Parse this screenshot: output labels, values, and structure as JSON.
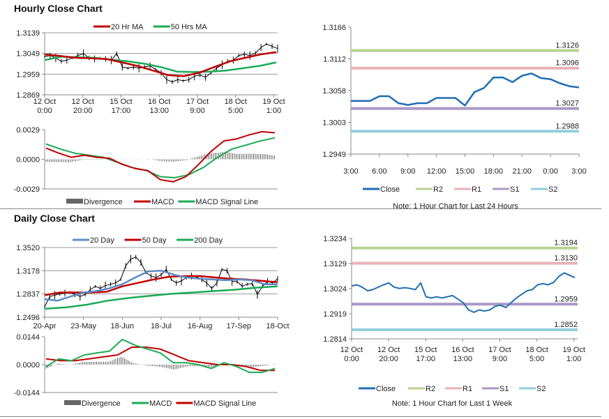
{
  "colors": {
    "close": "#1f6db3",
    "r2": "#b9d38f",
    "r1": "#e6b3b3",
    "s1": "#aa99c6",
    "s2": "#93cddd",
    "red": "#c00000",
    "green": "#1aaa55",
    "blue": "#5b8cc4",
    "bars": "#666666",
    "candle": "#000000"
  },
  "hourly_title": "Hourly Close Chart",
  "daily_title": "Daily Close Chart",
  "chart_data": [
    {
      "id": "hourly-price",
      "type": "line",
      "legend": [
        "20 Hr MA",
        "50 Hrs MA"
      ],
      "ylim": [
        1.2869,
        1.3139
      ],
      "yticks": [
        "1.3139",
        "1.3049",
        "1.2959",
        "1.2869"
      ],
      "xticks": [
        [
          "12 Oct",
          "0:00"
        ],
        [
          "12 Oct",
          "20:00"
        ],
        [
          "15 Oct",
          "17:00"
        ],
        [
          "16 Oct",
          "13:00"
        ],
        [
          "17 Oct",
          "9:00"
        ],
        [
          "18 Oct",
          "5:00"
        ],
        [
          "19 Oct",
          "1:00"
        ]
      ],
      "series": [
        {
          "name": "Close",
          "values": [
            1.3035,
            1.304,
            1.303,
            1.3015,
            1.302,
            1.303,
            1.304,
            1.3048,
            1.303,
            1.3025,
            1.3028,
            1.3025,
            1.302,
            1.3048,
            1.299,
            1.2985,
            1.299,
            1.2985,
            1.299,
            1.2995,
            1.298,
            1.2965,
            1.2935,
            1.2925,
            1.2935,
            1.293,
            1.2935,
            1.295,
            1.2955,
            1.2945,
            1.2965,
            1.2985,
            1.3,
            1.3015,
            1.302,
            1.304,
            1.3045,
            1.304,
            1.305,
            1.3075,
            1.309,
            1.308,
            1.307
          ]
        },
        {
          "name": "20 Hr MA",
          "values": [
            1.3045,
            1.3038,
            1.303,
            1.3028,
            1.3025,
            1.301,
            1.2995,
            1.2975,
            1.2955,
            1.295,
            1.2965,
            1.299,
            1.3015,
            1.303,
            1.3045,
            1.3055
          ]
        },
        {
          "name": "50 Hrs MA",
          "values": [
            1.302,
            1.3035,
            1.3032,
            1.303,
            1.3022,
            1.3015,
            1.3005,
            1.299,
            1.297,
            1.2968,
            1.297,
            1.2975,
            1.2985,
            1.2995,
            1.301
          ]
        }
      ]
    },
    {
      "id": "hourly-macd",
      "type": "line",
      "legend": [
        "Divergence",
        "MACD",
        "MACD Signal Line"
      ],
      "ylim": [
        -0.0029,
        0.0029
      ],
      "yticks": [
        "0.0029",
        "0.0000",
        "-0.0029"
      ],
      "series": [
        {
          "name": "MACD",
          "values": [
            0.0011,
            0.0006,
            0.0002,
            0.0004,
            0.0002,
            0.0001,
            -0.0005,
            -0.0009,
            -0.0011,
            -0.002,
            -0.0022,
            -0.0017,
            -0.0005,
            0.0008,
            0.0018,
            0.002,
            0.0024,
            0.0027,
            0.0026
          ]
        },
        {
          "name": "MACD Signal Line",
          "values": [
            0.0015,
            0.001,
            0.0006,
            0.0004,
            0.0002,
            -0.0003,
            -0.0008,
            -0.0011,
            -0.0017,
            -0.0018,
            -0.0015,
            -0.0008,
            0.0002,
            0.001,
            0.0014,
            0.0018,
            0.0021
          ]
        }
      ]
    },
    {
      "id": "last-24h",
      "type": "line",
      "legend": [
        "Close",
        "R2",
        "R1",
        "S1",
        "S2"
      ],
      "note": "Note: 1 Hour Chart for Last 24 Hours",
      "ylim": [
        1.2949,
        1.3166
      ],
      "yticks": [
        "1.3166",
        "1.3112",
        "1.3058",
        "1.3003",
        "1.2949"
      ],
      "xticks": [
        "3:00",
        "6:00",
        "9:00",
        "12:00",
        "15:00",
        "18:00",
        "21:00",
        "0:00",
        "3:00"
      ],
      "levels": {
        "R2": "1.3126",
        "R1": "1.3096",
        "S1": "1.3027",
        "S2": "1.2988"
      },
      "series": [
        {
          "name": "Close",
          "values": [
            1.304,
            1.304,
            1.304,
            1.3048,
            1.3048,
            1.3036,
            1.3033,
            1.3036,
            1.3036,
            1.3045,
            1.3045,
            1.3045,
            1.3032,
            1.3055,
            1.3062,
            1.308,
            1.308,
            1.3072,
            1.3083,
            1.3087,
            1.3079,
            1.3077,
            1.307,
            1.3065,
            1.3063
          ]
        }
      ]
    },
    {
      "id": "daily-price",
      "type": "line",
      "legend": [
        "20 Day",
        "50 Day",
        "200 Day"
      ],
      "ylim": [
        1.2496,
        1.352
      ],
      "yticks": [
        "1.3520",
        "1.3178",
        "1.2837",
        "1.2496"
      ],
      "xticks": [
        "20-Apr",
        "23-May",
        "18-Jun",
        "18-Jul",
        "16-Aug",
        "17-Sep",
        "18-Oct"
      ],
      "series": [
        {
          "name": "Close",
          "values": [
            1.265,
            1.28,
            1.282,
            1.284,
            1.285,
            1.286,
            1.283,
            1.28,
            1.283,
            1.29,
            1.295,
            1.292,
            1.296,
            1.298,
            1.3,
            1.305,
            1.325,
            1.335,
            1.338,
            1.33,
            1.315,
            1.31,
            1.308,
            1.312,
            1.32,
            1.305,
            1.3,
            1.303,
            1.308,
            1.31,
            1.309,
            1.305,
            1.3,
            1.292,
            1.3,
            1.32,
            1.318,
            1.302,
            1.302,
            1.295,
            1.298,
            1.299,
            1.283,
            1.295,
            1.302,
            1.3,
            1.306
          ]
        },
        {
          "name": "20 Day",
          "values": [
            1.276,
            1.274,
            1.28,
            1.286,
            1.288,
            1.292,
            1.298,
            1.308,
            1.317,
            1.318,
            1.312,
            1.308,
            1.306,
            1.305,
            1.304,
            1.305,
            1.304,
            1.298,
            1.298
          ]
        },
        {
          "name": "50 Day",
          "values": [
            1.282,
            1.286,
            1.286,
            1.286,
            1.287,
            1.295,
            1.3,
            1.305,
            1.309,
            1.31,
            1.31,
            1.308,
            1.306,
            1.305,
            1.303,
            1.301
          ]
        },
        {
          "name": "200 Day",
          "values": [
            1.262,
            1.264,
            1.268,
            1.274,
            1.278,
            1.281,
            1.284,
            1.286,
            1.288,
            1.29,
            1.293,
            1.295
          ]
        }
      ]
    },
    {
      "id": "daily-macd",
      "type": "line",
      "legend": [
        "Divergence",
        "MACD",
        "MACD Signal Line"
      ],
      "ylim": [
        -0.0144,
        0.0144
      ],
      "yticks": [
        "0.0144",
        "0.0000",
        "-0.0144"
      ],
      "series": [
        {
          "name": "MACD",
          "values": [
            -0.001,
            0.003,
            0.002,
            0.005,
            0.006,
            0.007,
            0.013,
            0.01,
            0.008,
            0.006,
            0.001,
            0.001,
            0.0,
            -0.002,
            0.001,
            -0.001,
            -0.004,
            -0.004,
            -0.002
          ]
        },
        {
          "name": "MACD Signal Line",
          "values": [
            0.003,
            0.002,
            0.002,
            0.003,
            0.004,
            0.005,
            0.009,
            0.009,
            0.008,
            0.005,
            0.002,
            0.001,
            0.0,
            0.0,
            -0.001,
            -0.003,
            -0.003
          ]
        }
      ]
    },
    {
      "id": "last-week",
      "type": "line",
      "legend": [
        "Close",
        "R2",
        "R1",
        "S1",
        "S2"
      ],
      "note": "Note: 1 Hour Chart for  Last 1 Week",
      "ylim": [
        1.2814,
        1.3234
      ],
      "yticks": [
        "1.3234",
        "1.3129",
        "1.3024",
        "1.2919",
        "1.2814"
      ],
      "xticks": [
        [
          "12 Oct",
          "0:00"
        ],
        [
          "12 Oct",
          "20:00"
        ],
        [
          "15 Oct",
          "17:00"
        ],
        [
          "16 Oct",
          "13:00"
        ],
        [
          "17 Oct",
          "9:00"
        ],
        [
          "18 Oct",
          "5:00"
        ],
        [
          "19 Oct",
          "1:00"
        ]
      ],
      "levels": {
        "R2": "1.3194",
        "R1": "1.3130",
        "S1": "1.2959",
        "S2": "1.2852"
      },
      "series": [
        {
          "name": "Close",
          "values": [
            1.3035,
            1.304,
            1.303,
            1.3015,
            1.302,
            1.303,
            1.304,
            1.3048,
            1.303,
            1.3025,
            1.3028,
            1.3025,
            1.302,
            1.3048,
            1.299,
            1.2985,
            1.299,
            1.2985,
            1.299,
            1.2995,
            1.298,
            1.2965,
            1.2935,
            1.2925,
            1.2935,
            1.293,
            1.2935,
            1.295,
            1.2955,
            1.2945,
            1.2965,
            1.2985,
            1.3,
            1.3015,
            1.302,
            1.304,
            1.3045,
            1.304,
            1.305,
            1.3075,
            1.309,
            1.308,
            1.307
          ]
        }
      ]
    }
  ]
}
